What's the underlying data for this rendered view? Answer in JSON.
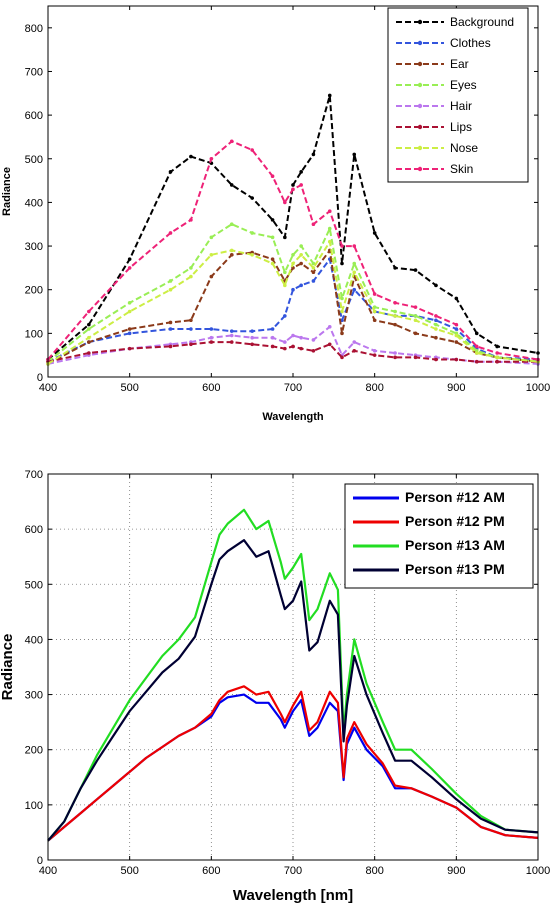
{
  "chart_data": [
    {
      "type": "line",
      "xlabel": "Wavelength",
      "ylabel": "Radiance",
      "xlim": [
        400,
        1000
      ],
      "ylim": [
        0,
        850
      ],
      "xticks": [
        400,
        500,
        600,
        700,
        800,
        900,
        1000
      ],
      "yticks": [
        0,
        100,
        200,
        300,
        400,
        500,
        600,
        700,
        800
      ],
      "grid": false,
      "legend": "top-right",
      "line_style": "dashed with markers",
      "x": [
        400,
        450,
        500,
        550,
        575,
        600,
        625,
        650,
        675,
        690,
        700,
        710,
        725,
        745,
        760,
        775,
        800,
        825,
        850,
        875,
        900,
        925,
        950,
        1000
      ],
      "series": [
        {
          "name": "Background",
          "color": "#000000",
          "values": [
            40,
            120,
            270,
            470,
            505,
            490,
            440,
            410,
            360,
            320,
            440,
            470,
            510,
            645,
            260,
            510,
            330,
            250,
            245,
            210,
            180,
            100,
            70,
            55
          ]
        },
        {
          "name": "Clothes",
          "color": "#3355dd",
          "values": [
            35,
            80,
            100,
            110,
            110,
            110,
            105,
            105,
            110,
            140,
            200,
            210,
            220,
            270,
            130,
            200,
            150,
            140,
            140,
            130,
            110,
            65,
            45,
            40
          ]
        },
        {
          "name": "Ear",
          "color": "#8b3a1a",
          "values": [
            30,
            80,
            110,
            125,
            130,
            230,
            280,
            285,
            270,
            220,
            250,
            260,
            240,
            290,
            100,
            230,
            130,
            120,
            100,
            90,
            80,
            55,
            45,
            35
          ]
        },
        {
          "name": "Eyes",
          "color": "#99ee55",
          "values": [
            35,
            110,
            170,
            220,
            250,
            320,
            350,
            330,
            320,
            240,
            280,
            300,
            260,
            340,
            180,
            260,
            160,
            150,
            140,
            120,
            100,
            60,
            45,
            35
          ]
        },
        {
          "name": "Hair",
          "color": "#bb77ee",
          "values": [
            30,
            50,
            65,
            75,
            80,
            90,
            95,
            90,
            90,
            80,
            95,
            90,
            85,
            115,
            50,
            80,
            60,
            55,
            50,
            45,
            40,
            35,
            35,
            30
          ]
        },
        {
          "name": "Lips",
          "color": "#aa1133",
          "values": [
            35,
            55,
            65,
            70,
            75,
            80,
            80,
            75,
            70,
            65,
            70,
            65,
            60,
            75,
            45,
            60,
            50,
            45,
            45,
            40,
            40,
            35,
            35,
            35
          ]
        },
        {
          "name": "Nose",
          "color": "#ccee44",
          "values": [
            30,
            90,
            150,
            200,
            230,
            280,
            290,
            280,
            260,
            210,
            260,
            280,
            250,
            310,
            150,
            240,
            150,
            140,
            130,
            110,
            95,
            55,
            45,
            35
          ]
        },
        {
          "name": "Skin",
          "color": "#ee2277",
          "values": [
            40,
            150,
            250,
            330,
            360,
            500,
            540,
            520,
            460,
            400,
            430,
            440,
            350,
            380,
            300,
            300,
            190,
            170,
            160,
            140,
            120,
            70,
            55,
            40
          ]
        }
      ]
    },
    {
      "type": "line",
      "xlabel": "Wavelength [nm]",
      "ylabel": "Radiance",
      "xlim": [
        400,
        1000
      ],
      "ylim": [
        0,
        700
      ],
      "xticks": [
        400,
        500,
        600,
        700,
        800,
        900,
        1000
      ],
      "yticks": [
        0,
        100,
        200,
        300,
        400,
        500,
        600,
        700
      ],
      "grid": true,
      "legend": "top-right",
      "x": [
        400,
        420,
        440,
        460,
        480,
        500,
        520,
        540,
        560,
        580,
        600,
        610,
        620,
        640,
        655,
        670,
        685,
        690,
        700,
        710,
        720,
        730,
        745,
        755,
        762,
        766,
        775,
        790,
        810,
        825,
        845,
        870,
        900,
        930,
        960,
        1000
      ],
      "series": [
        {
          "name": "Person #12 AM",
          "color": "#0000ee",
          "values": [
            35,
            60,
            85,
            110,
            135,
            160,
            185,
            205,
            225,
            240,
            260,
            285,
            295,
            300,
            285,
            285,
            255,
            240,
            270,
            290,
            225,
            240,
            285,
            270,
            145,
            210,
            240,
            200,
            170,
            130,
            130,
            115,
            95,
            60,
            45,
            40
          ]
        },
        {
          "name": "Person #12 PM",
          "color": "#ee0000",
          "values": [
            35,
            60,
            85,
            110,
            135,
            160,
            185,
            205,
            225,
            240,
            265,
            290,
            305,
            315,
            300,
            305,
            265,
            250,
            280,
            305,
            235,
            250,
            305,
            285,
            150,
            220,
            250,
            210,
            175,
            135,
            130,
            115,
            95,
            60,
            45,
            40
          ]
        },
        {
          "name": "Person #13 AM",
          "color": "#22dd22",
          "values": [
            35,
            70,
            130,
            190,
            240,
            290,
            330,
            370,
            400,
            440,
            540,
            590,
            610,
            635,
            600,
            615,
            540,
            510,
            530,
            555,
            435,
            455,
            520,
            490,
            230,
            300,
            400,
            320,
            250,
            200,
            200,
            165,
            120,
            80,
            55,
            50
          ]
        },
        {
          "name": "Person #13 PM",
          "color": "#000033",
          "values": [
            35,
            70,
            130,
            180,
            225,
            270,
            305,
            340,
            365,
            405,
            500,
            545,
            560,
            580,
            550,
            560,
            480,
            455,
            470,
            505,
            380,
            395,
            470,
            445,
            215,
            280,
            370,
            300,
            230,
            180,
            180,
            150,
            110,
            75,
            55,
            50
          ]
        }
      ]
    }
  ]
}
